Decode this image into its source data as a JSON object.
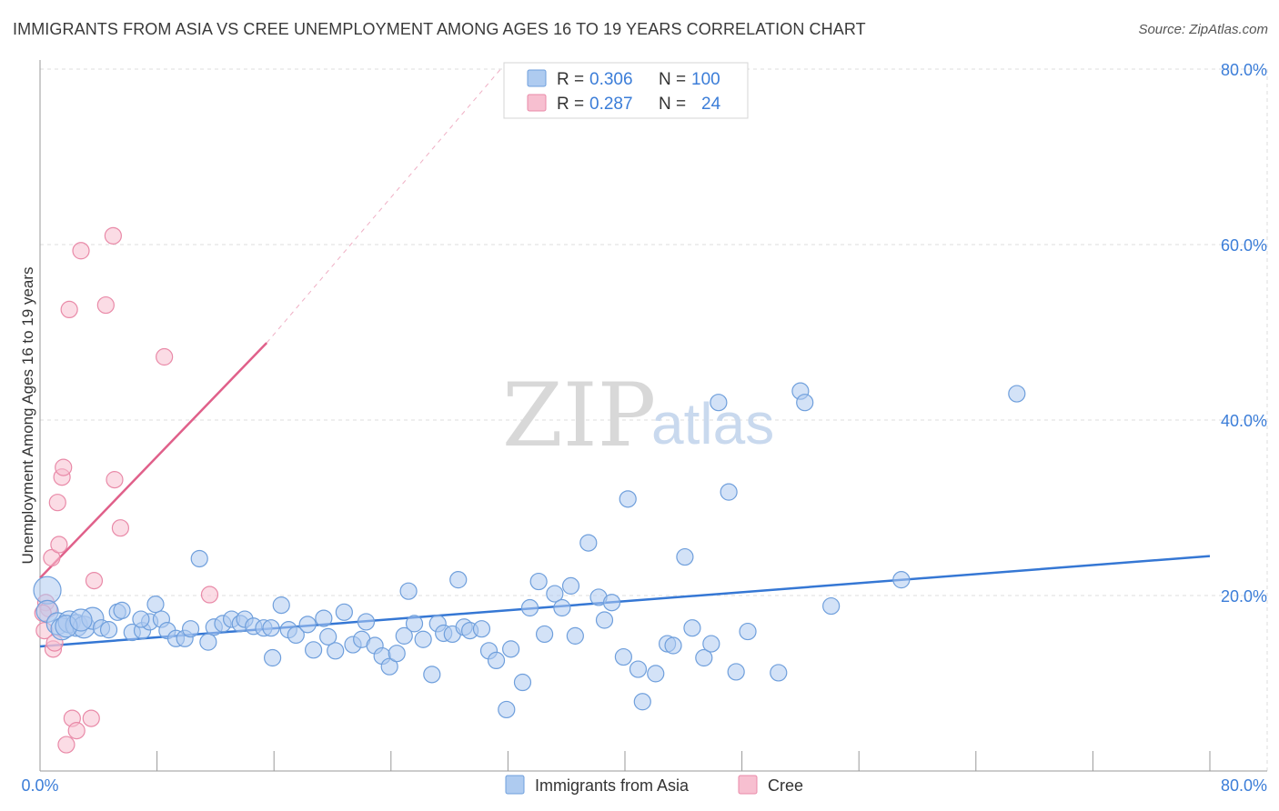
{
  "header": {
    "title": "IMMIGRANTS FROM ASIA VS CREE UNEMPLOYMENT AMONG AGES 16 TO 19 YEARS CORRELATION CHART",
    "source": "Source: ZipAtlas.com"
  },
  "watermark": {
    "zip": "ZIP",
    "atlas": "atlas"
  },
  "legend": {
    "rows": [
      {
        "r_label": "R =",
        "r_value": "0.306",
        "n_label": "N =",
        "n_value": "100"
      },
      {
        "r_label": "R =",
        "r_value": "0.287",
        "n_label": "N =",
        "n_value": "24"
      }
    ],
    "bottom": [
      "Immigrants from Asia",
      "Cree"
    ]
  },
  "colors": {
    "asia_fill": "#aecbf0",
    "asia_stroke": "#6f9fdc",
    "asia_line": "#3577d4",
    "cree_fill": "#f7bfd0",
    "cree_stroke": "#e98aa8",
    "cree_line": "#e0608a",
    "tick": "#3b7dd8",
    "grid": "#dddddd"
  },
  "chart_data": {
    "type": "scatter",
    "title": "IMMIGRANTS FROM ASIA VS CREE UNEMPLOYMENT AMONG AGES 16 TO 19 YEARS CORRELATION CHART",
    "xlabel": "",
    "ylabel": "Unemployment Among Ages 16 to 19 years",
    "xlim": [
      0,
      80
    ],
    "ylim": [
      0,
      80
    ],
    "x_tick_labels": [
      "0.0%",
      "80.0%"
    ],
    "y_tick_labels": [
      "20.0%",
      "40.0%",
      "60.0%",
      "80.0%"
    ],
    "y_ticks": [
      20,
      40,
      60,
      80
    ],
    "grid": true,
    "series": [
      {
        "name": "Immigrants from Asia",
        "R": 0.306,
        "N": 100,
        "points": [
          [
            0.5,
            20.6
          ],
          [
            0.5,
            18.2
          ],
          [
            1.2,
            16.8
          ],
          [
            1.5,
            16.2
          ],
          [
            2.0,
            17.0
          ],
          [
            2.5,
            16.6
          ],
          [
            3.0,
            16.4
          ],
          [
            3.6,
            17.4
          ],
          [
            4.2,
            16.3
          ],
          [
            5.3,
            18.1
          ],
          [
            5.6,
            18.3
          ],
          [
            6.3,
            15.8
          ],
          [
            7.0,
            16.0
          ],
          [
            7.5,
            17.0
          ],
          [
            7.9,
            19.0
          ],
          [
            8.3,
            17.3
          ],
          [
            8.7,
            16.0
          ],
          [
            9.3,
            15.1
          ],
          [
            9.9,
            15.1
          ],
          [
            10.3,
            16.2
          ],
          [
            10.9,
            24.2
          ],
          [
            11.5,
            14.7
          ],
          [
            11.9,
            16.4
          ],
          [
            12.5,
            16.8
          ],
          [
            13.1,
            17.3
          ],
          [
            13.7,
            16.8
          ],
          [
            14.0,
            17.3
          ],
          [
            14.6,
            16.5
          ],
          [
            15.3,
            16.3
          ],
          [
            15.8,
            16.3
          ],
          [
            15.9,
            12.9
          ],
          [
            16.5,
            18.9
          ],
          [
            17.0,
            16.1
          ],
          [
            17.5,
            15.5
          ],
          [
            18.3,
            16.7
          ],
          [
            18.7,
            13.8
          ],
          [
            19.4,
            17.4
          ],
          [
            19.7,
            15.3
          ],
          [
            20.2,
            13.7
          ],
          [
            20.8,
            18.1
          ],
          [
            21.4,
            14.4
          ],
          [
            22.0,
            15.0
          ],
          [
            22.3,
            17.0
          ],
          [
            22.9,
            14.3
          ],
          [
            23.4,
            13.1
          ],
          [
            23.9,
            11.9
          ],
          [
            24.4,
            13.4
          ],
          [
            24.9,
            15.4
          ],
          [
            25.2,
            20.5
          ],
          [
            25.6,
            16.8
          ],
          [
            26.2,
            15.0
          ],
          [
            26.8,
            11.0
          ],
          [
            27.2,
            16.8
          ],
          [
            27.6,
            15.7
          ],
          [
            28.2,
            15.6
          ],
          [
            28.6,
            21.8
          ],
          [
            29.0,
            16.4
          ],
          [
            29.4,
            16.0
          ],
          [
            30.2,
            16.2
          ],
          [
            30.7,
            13.7
          ],
          [
            31.2,
            12.6
          ],
          [
            31.9,
            7.0
          ],
          [
            32.2,
            13.9
          ],
          [
            33.0,
            10.1
          ],
          [
            33.5,
            18.6
          ],
          [
            34.1,
            21.6
          ],
          [
            34.5,
            15.6
          ],
          [
            35.2,
            20.2
          ],
          [
            35.7,
            18.6
          ],
          [
            36.3,
            21.1
          ],
          [
            36.6,
            15.4
          ],
          [
            37.5,
            26.0
          ],
          [
            38.2,
            19.8
          ],
          [
            38.6,
            17.2
          ],
          [
            39.1,
            19.2
          ],
          [
            39.9,
            13.0
          ],
          [
            40.2,
            31.0
          ],
          [
            40.9,
            11.6
          ],
          [
            41.2,
            7.9
          ],
          [
            42.1,
            11.1
          ],
          [
            42.9,
            14.5
          ],
          [
            43.3,
            14.3
          ],
          [
            44.1,
            24.4
          ],
          [
            44.6,
            16.3
          ],
          [
            45.4,
            12.9
          ],
          [
            45.9,
            14.5
          ],
          [
            46.4,
            42.0
          ],
          [
            47.1,
            31.8
          ],
          [
            47.6,
            11.3
          ],
          [
            48.4,
            15.9
          ],
          [
            50.5,
            11.2
          ],
          [
            52.0,
            43.3
          ],
          [
            52.3,
            42.0
          ],
          [
            54.1,
            18.8
          ],
          [
            58.9,
            21.8
          ],
          [
            66.8,
            43.0
          ],
          [
            1.8,
            16.5
          ],
          [
            2.8,
            17.2
          ],
          [
            4.7,
            16.1
          ],
          [
            6.9,
            17.3
          ]
        ]
      },
      {
        "name": "Cree",
        "R": 0.287,
        "N": 24,
        "points": [
          [
            0.3,
            16.0
          ],
          [
            0.4,
            19.2
          ],
          [
            0.6,
            18.5
          ],
          [
            0.8,
            24.3
          ],
          [
            0.9,
            13.9
          ],
          [
            1.0,
            14.6
          ],
          [
            1.2,
            30.6
          ],
          [
            1.3,
            25.8
          ],
          [
            1.5,
            33.5
          ],
          [
            1.6,
            34.6
          ],
          [
            1.8,
            3.0
          ],
          [
            2.0,
            52.6
          ],
          [
            2.2,
            6.0
          ],
          [
            2.5,
            4.6
          ],
          [
            2.8,
            59.3
          ],
          [
            3.5,
            6.0
          ],
          [
            3.7,
            21.7
          ],
          [
            4.5,
            53.1
          ],
          [
            5.0,
            61.0
          ],
          [
            5.1,
            33.2
          ],
          [
            5.5,
            27.7
          ],
          [
            8.5,
            47.2
          ],
          [
            11.6,
            20.1
          ],
          [
            0.2,
            18.0
          ]
        ]
      }
    ],
    "trend_lines": [
      {
        "series": "Immigrants from Asia",
        "x": [
          0,
          80
        ],
        "y": [
          14.2,
          24.5
        ]
      },
      {
        "series": "Cree",
        "x": [
          0,
          15.5
        ],
        "y": [
          22.0,
          48.8
        ],
        "dashed_extension_to": [
          31.5,
          80.0
        ]
      }
    ]
  }
}
